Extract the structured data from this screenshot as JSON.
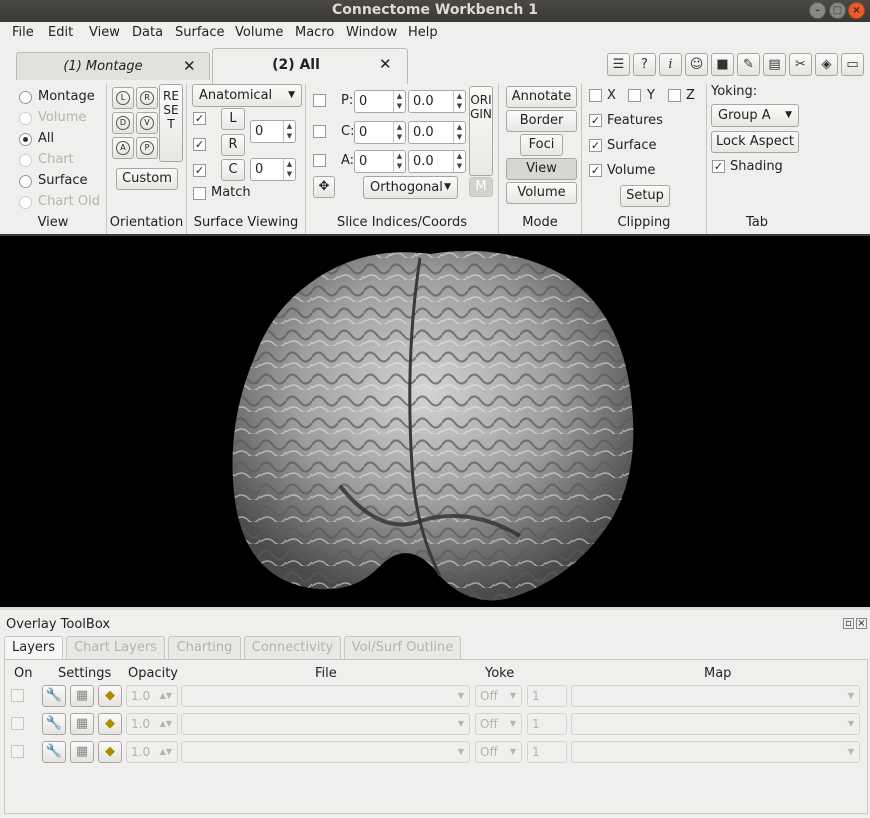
{
  "window": {
    "title": "Connectome Workbench 1"
  },
  "menu": [
    "File",
    "Edit",
    "View",
    "Data",
    "Surface",
    "Volume",
    "Macro",
    "Window",
    "Help"
  ],
  "tabs": [
    {
      "label": "(1) Montage",
      "selected": false
    },
    {
      "label": "(2) All",
      "selected": true
    }
  ],
  "toolbar_icons": [
    "chat-icon",
    "help-icon",
    "info-icon",
    "identify-icon",
    "camera-icon",
    "scroll-icon",
    "clapper-icon",
    "tools-icon",
    "layers-icon",
    "toolbox-icon"
  ],
  "view_group": {
    "label": "View",
    "options": [
      {
        "label": "Montage",
        "enabled": true,
        "checked": false
      },
      {
        "label": "Volume",
        "enabled": false,
        "checked": false
      },
      {
        "label": "All",
        "enabled": true,
        "checked": true
      },
      {
        "label": "Chart",
        "enabled": false,
        "checked": false
      },
      {
        "label": "Surface",
        "enabled": true,
        "checked": false
      },
      {
        "label": "Chart Old",
        "enabled": false,
        "checked": false
      }
    ]
  },
  "orientation_group": {
    "label": "Orientation",
    "reset_label": "RESET",
    "custom_label": "Custom",
    "orient_letters": [
      "L",
      "R",
      "D",
      "V",
      "A",
      "P"
    ]
  },
  "surface_viewing": {
    "label": "Surface Viewing",
    "mode": "Anatomical",
    "rows": [
      {
        "checked": true,
        "button": "L",
        "value": ""
      },
      {
        "checked": true,
        "button": "R",
        "value": "0"
      },
      {
        "checked": true,
        "button": "C",
        "value": "0"
      }
    ],
    "match_label": "Match"
  },
  "slice_indices": {
    "label": "Slice Indices/Coords",
    "rows": [
      {
        "axis": "P:",
        "index": "0",
        "coord": "0.0"
      },
      {
        "axis": "C:",
        "index": "0",
        "coord": "0.0"
      },
      {
        "axis": "A:",
        "index": "0",
        "coord": "0.0"
      }
    ],
    "origin_label": "ORIGIN",
    "projection": "Orthogonal",
    "m_label": "M"
  },
  "mode_group": {
    "label": "Mode",
    "buttons": [
      "Annotate",
      "Border",
      "Foci",
      "View",
      "Volume"
    ],
    "active": "View"
  },
  "clipping_group": {
    "label": "Clipping",
    "axes": [
      {
        "label": "X",
        "checked": false
      },
      {
        "label": "Y",
        "checked": false
      },
      {
        "label": "Z",
        "checked": false
      }
    ],
    "items": [
      {
        "label": "Features",
        "checked": true
      },
      {
        "label": "Surface",
        "checked": true
      },
      {
        "label": "Volume",
        "checked": true
      }
    ],
    "setup_label": "Setup"
  },
  "tab_group": {
    "label": "Tab",
    "yoking_label": "Yoking:",
    "yoking_value": "Group A",
    "lock_aspect_label": "Lock Aspect",
    "shading_label": "Shading",
    "shading_checked": true
  },
  "overlay_toolbox": {
    "title": "Overlay ToolBox",
    "tabs": [
      "Layers",
      "Chart Layers",
      "Charting",
      "Connectivity",
      "Vol/Surf Outline"
    ],
    "selected_tab": "Layers",
    "columns": {
      "on": "On",
      "settings": "Settings",
      "opacity": "Opacity",
      "file": "File",
      "yoke": "Yoke",
      "map": "Map"
    },
    "rows": [
      {
        "opacity": "1.0",
        "yoke": "Off",
        "map_index": "1"
      },
      {
        "opacity": "1.0",
        "yoke": "Off",
        "map_index": "1"
      },
      {
        "opacity": "1.0",
        "yoke": "Off",
        "map_index": "1"
      }
    ]
  },
  "colors": {
    "accent_close": "#e85d2b",
    "panel": "#f0efed",
    "viewport": "#000000"
  }
}
